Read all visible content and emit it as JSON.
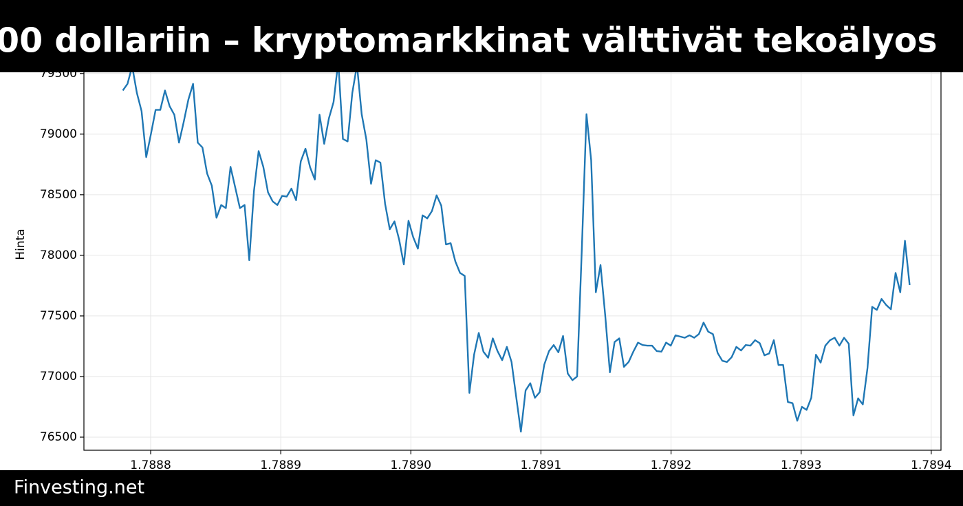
{
  "chart_data": {
    "type": "line",
    "title": "00 dollariin – kryptomarkkinat välttivät tekoälyos",
    "ylabel": "Hinta",
    "xlim": [
      1.7887487,
      1.7894075
    ],
    "ylim": [
      76392,
      79868
    ],
    "xticks": [
      1.7888,
      1.7889,
      {
        "value": 1.789,
        "label": "1.7890"
      },
      1.7891,
      1.7892,
      1.7893,
      1.7894
    ],
    "yticks": [
      76500,
      77000,
      77500,
      78000,
      78500,
      79000,
      79500
    ],
    "grid": true,
    "x": [
      1.7887786,
      1.7887822,
      1.7887858,
      1.7887894,
      1.788793,
      1.7887966,
      1.7888002,
      1.7888038,
      1.7888074,
      1.788811,
      1.7888146,
      1.7888182,
      1.7888218,
      1.7888254,
      1.788829,
      1.7888326,
      1.7888362,
      1.7888398,
      1.7888434,
      1.788847,
      1.7888506,
      1.7888542,
      1.7888578,
      1.7888614,
      1.788865,
      1.7888686,
      1.7888722,
      1.7888758,
      1.7888794,
      1.788883,
      1.7888866,
      1.7888902,
      1.7888938,
      1.7888974,
      1.788901,
      1.7889046,
      1.7889082,
      1.7889118,
      1.7889154,
      1.788919,
      1.7889226,
      1.7889262,
      1.7889298,
      1.7889334,
      1.788937,
      1.7889406,
      1.7889442,
      1.7889478,
      1.7889514,
      1.788955,
      1.7889586,
      1.7889622,
      1.7889658,
      1.7889694,
      1.788973,
      1.7889766,
      1.7889802,
      1.7889838,
      1.7889874,
      1.788991,
      1.7889946,
      1.7889982,
      1.7890018,
      1.7890054,
      1.789009,
      1.7890126,
      1.7890162,
      1.7890198,
      1.7890234,
      1.789027,
      1.7890306,
      1.7890342,
      1.7890378,
      1.7890414,
      1.789045,
      1.7890486,
      1.7890522,
      1.7890558,
      1.7890594,
      1.789063,
      1.7890666,
      1.7890702,
      1.7890738,
      1.7890774,
      1.789081,
      1.7890846,
      1.7890882,
      1.7890918,
      1.7890954,
      1.789099,
      1.7891026,
      1.7891062,
      1.7891098,
      1.7891134,
      1.789117,
      1.7891206,
      1.7891242,
      1.7891278,
      1.7891314,
      1.789135,
      1.7891386,
      1.7891422,
      1.7891458,
      1.7891494,
      1.789153,
      1.7891566,
      1.7891602,
      1.7891638,
      1.7891674,
      1.789171,
      1.7891746,
      1.7891782,
      1.7891818,
      1.7891854,
      1.789189,
      1.7891926,
      1.7891962,
      1.7891998,
      1.7892034,
      1.789207,
      1.7892106,
      1.7892142,
      1.7892178,
      1.7892214,
      1.789225,
      1.7892286,
      1.7892322,
      1.7892358,
      1.7892394,
      1.789243,
      1.7892466,
      1.7892502,
      1.7892538,
      1.7892574,
      1.789261,
      1.7892646,
      1.7892682,
      1.7892718,
      1.7892754,
      1.789279,
      1.7892826,
      1.7892862,
      1.7892898,
      1.7892934,
      1.789297,
      1.7893006,
      1.7893042,
      1.7893078,
      1.7893114,
      1.789315,
      1.7893186,
      1.7893222,
      1.7893258,
      1.7893294,
      1.789333,
      1.7893366,
      1.7893402,
      1.7893438,
      1.7893474,
      1.789351,
      1.7893546,
      1.7893582,
      1.7893618,
      1.7893654,
      1.789369,
      1.7893726,
      1.7893762,
      1.7893798,
      1.7893834
    ],
    "series": [
      {
        "name": "Hinta",
        "color": "#1f77b4",
        "values": [
          79360,
          79415,
          79560,
          79340,
          79190,
          78810,
          79000,
          79200,
          79200,
          79360,
          79230,
          79160,
          78930,
          79100,
          79285,
          79415,
          78930,
          78890,
          78675,
          78575,
          78310,
          78415,
          78390,
          78730,
          78560,
          78390,
          78415,
          77960,
          78530,
          78860,
          78730,
          78520,
          78445,
          78415,
          78490,
          78485,
          78550,
          78455,
          78775,
          78880,
          78725,
          78625,
          79160,
          78920,
          79130,
          79265,
          79600,
          78960,
          78940,
          79340,
          79570,
          79165,
          78955,
          78590,
          78785,
          78765,
          78425,
          78215,
          78280,
          78130,
          77925,
          78285,
          78150,
          78055,
          78330,
          78305,
          78365,
          78495,
          78410,
          78090,
          78100,
          77950,
          77855,
          77830,
          76865,
          77180,
          77360,
          77205,
          77155,
          77315,
          77210,
          77135,
          77245,
          77120,
          76830,
          76545,
          76885,
          76945,
          76825,
          76870,
          77100,
          77210,
          77260,
          77200,
          77335,
          77025,
          76970,
          77000,
          78045,
          79165,
          78785,
          77695,
          77920,
          77505,
          77035,
          77285,
          77315,
          77080,
          77120,
          77205,
          77280,
          77260,
          77255,
          77255,
          77210,
          77205,
          77280,
          77255,
          77340,
          77330,
          77320,
          77340,
          77320,
          77350,
          77445,
          77370,
          77350,
          77195,
          77130,
          77120,
          77160,
          77245,
          77215,
          77260,
          77255,
          77300,
          77275,
          77175,
          77190,
          77300,
          77095,
          77095,
          76790,
          76780,
          76635,
          76750,
          76725,
          76825,
          77180,
          77115,
          77255,
          77300,
          77320,
          77255,
          77320,
          77270,
          76680,
          76820,
          76770,
          77070,
          77575,
          77550,
          77640,
          77590,
          77555,
          77855,
          77695,
          78120,
          77755
        ]
      }
    ]
  },
  "footer": {
    "brand": "Finvesting.net"
  }
}
